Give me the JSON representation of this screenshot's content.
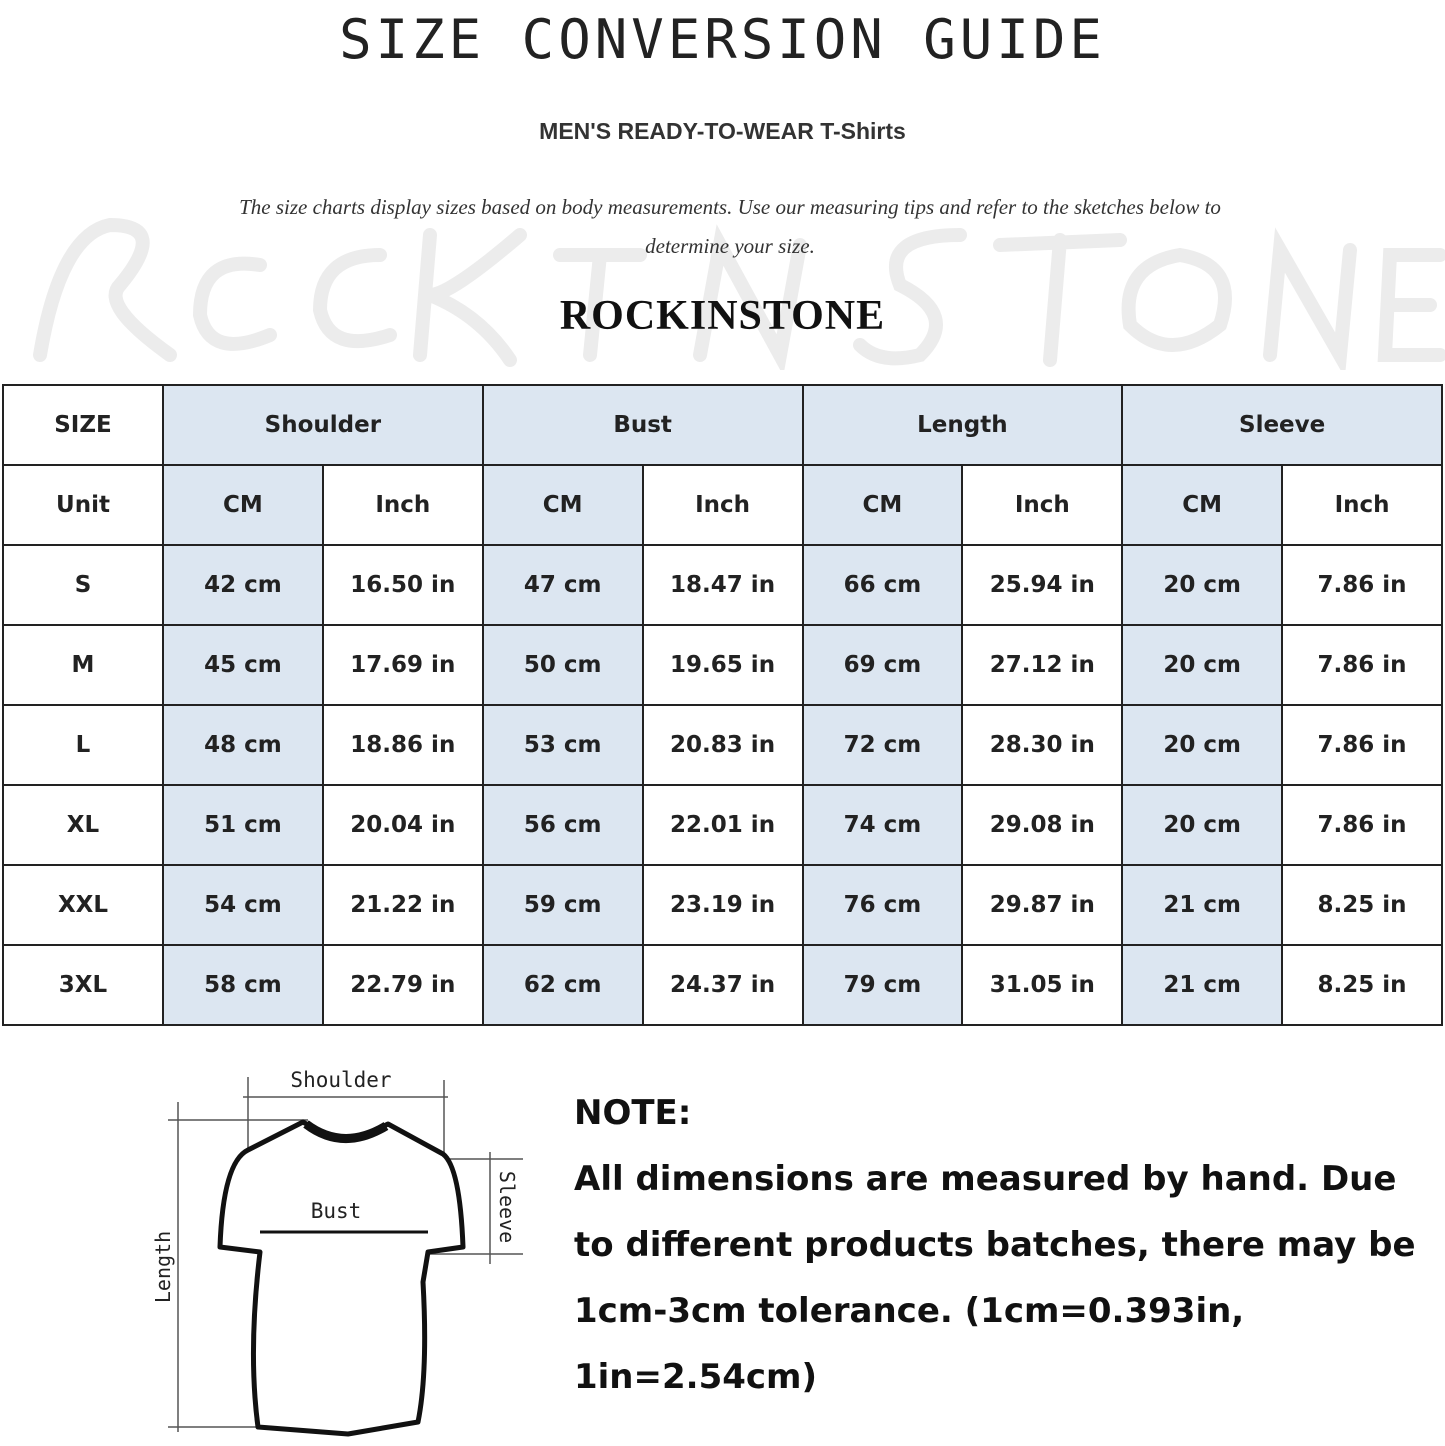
{
  "title": "SIZE CONVERSION GUIDE",
  "subtitle": "MEN'S READY-TO-WEAR T-Shirts",
  "description": "The size charts display sizes based on body measurements. Use our measuring tips and refer to the sketches below to determine your size.",
  "brand": "ROCKINSTONE",
  "watermark": "ROCKINSTONE",
  "colors": {
    "header_fill": "#dce6f1",
    "border": "#222222"
  },
  "table": {
    "size_header": "SIZE",
    "groups": [
      "Shoulder",
      "Bust",
      "Length",
      "Sleeve"
    ],
    "unit_label": "Unit",
    "units": [
      "CM",
      "Inch"
    ],
    "rows": [
      {
        "size": "S",
        "values": [
          "42 cm",
          "16.50 in",
          "47 cm",
          "18.47  in",
          "66 cm",
          "25.94  in",
          "20 cm",
          "7.86  in"
        ]
      },
      {
        "size": "M",
        "values": [
          "45 cm",
          "17.69  in",
          "50 cm",
          "19.65  in",
          "69 cm",
          "27.12  in",
          "20 cm",
          "7.86  in"
        ]
      },
      {
        "size": "L",
        "values": [
          "48 cm",
          "18.86  in",
          "53 cm",
          "20.83  in",
          "72 cm",
          "28.30  in",
          "20 cm",
          "7.86  in"
        ]
      },
      {
        "size": "XL",
        "values": [
          "51 cm",
          "20.04  in",
          "56 cm",
          "22.01  in",
          "74 cm",
          "29.08  in",
          "20 cm",
          "7.86  in"
        ]
      },
      {
        "size": "XXL",
        "values": [
          "54 cm",
          "21.22  in",
          "59 cm",
          "23.19  in",
          "76 cm",
          "29.87  in",
          "21 cm",
          "8.25  in"
        ]
      },
      {
        "size": "3XL",
        "values": [
          "58 cm",
          "22.79  in",
          "62 cm",
          "24.37  in",
          "79 cm",
          "31.05  in",
          "21 cm",
          "8.25  in"
        ]
      }
    ]
  },
  "diagram": {
    "shoulder": "Shoulder",
    "bust": "Bust",
    "sleeve": "Sleeve",
    "length": "Length"
  },
  "note": {
    "heading": "NOTE:",
    "text": "All dimensions are measured by hand. Due to different products batches, there may be 1cm-3cm tolerance. (1cm=0.393in, 1in=2.54cm)"
  }
}
